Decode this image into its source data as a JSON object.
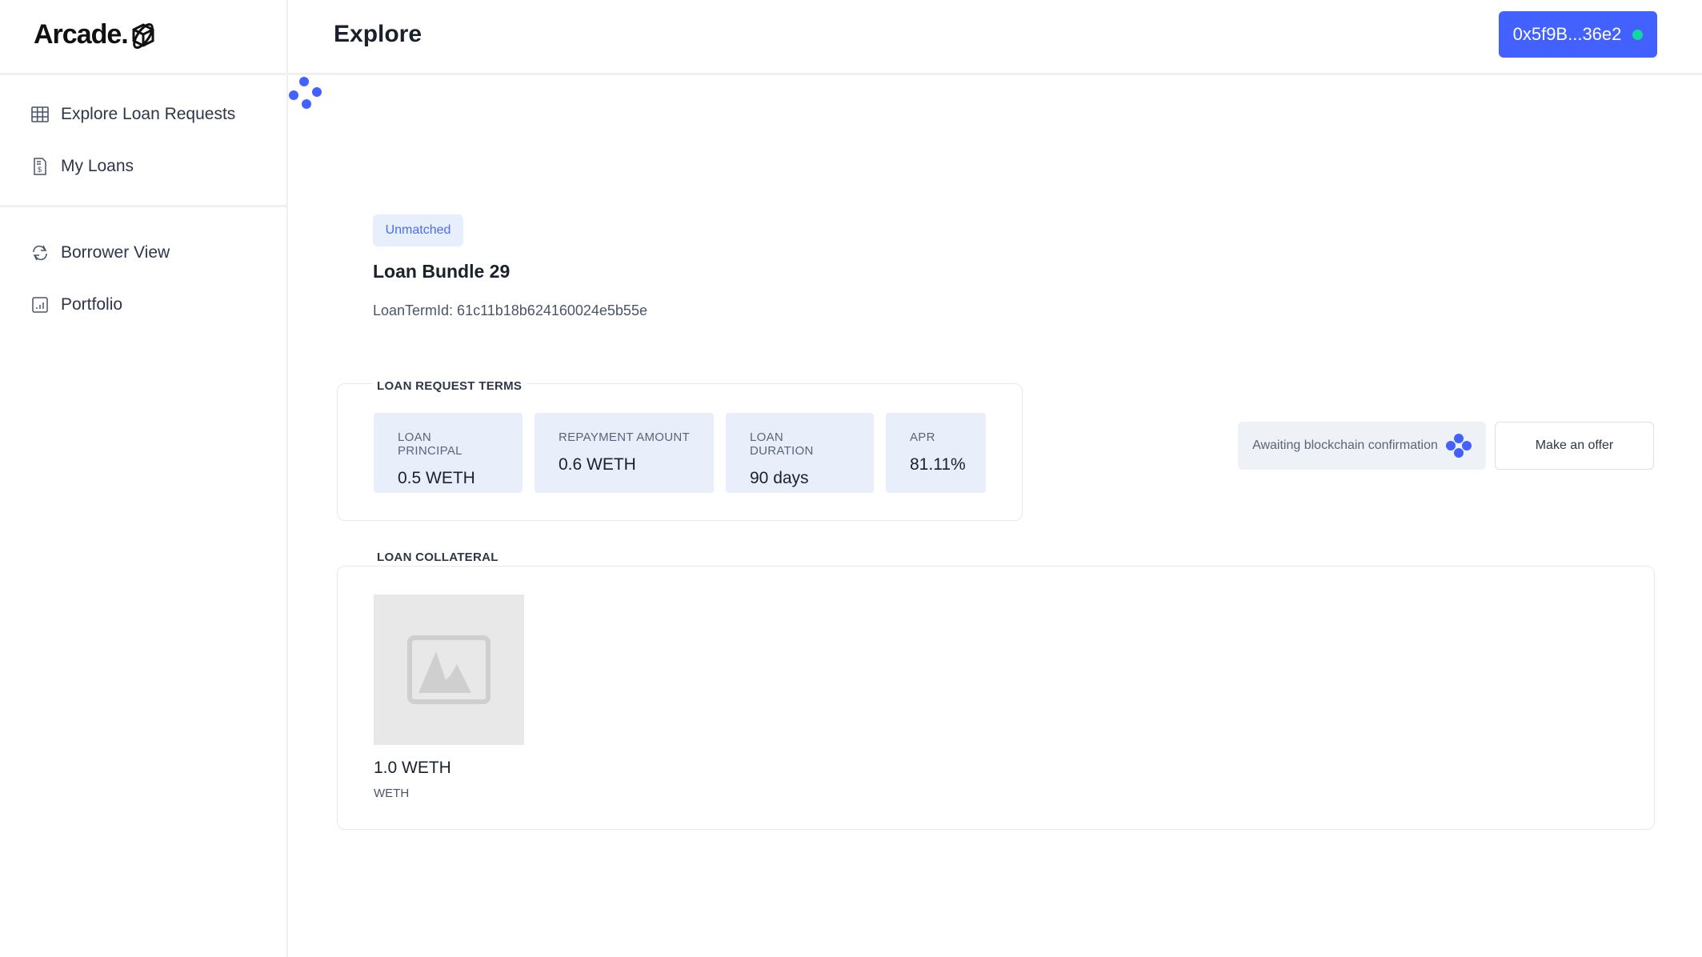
{
  "app": {
    "logo_text": "Arcade."
  },
  "sidebar": {
    "items": [
      {
        "label": "Explore Loan Requests",
        "icon": "table-icon"
      },
      {
        "label": "My Loans",
        "icon": "invoice-icon"
      },
      {
        "label": "Borrower View",
        "icon": "swap-icon"
      },
      {
        "label": "Portfolio",
        "icon": "chart-icon"
      }
    ]
  },
  "header": {
    "title": "Explore",
    "wallet": "0x5f9B...36e2",
    "wallet_status_color": "#10d9a0"
  },
  "loan": {
    "status": "Unmatched",
    "title": "Loan Bundle 29",
    "term_id": "LoanTermId: 61c11b18b624160024e5b55e",
    "terms_label": "Loan Request Terms",
    "terms": [
      {
        "label": "Loan Principal",
        "value": "0.5 WETH"
      },
      {
        "label": "Repayment Amount",
        "value": "0.6 WETH"
      },
      {
        "label": "Loan Duration",
        "value": "90 days"
      },
      {
        "label": "APR",
        "value": "81.11%"
      }
    ],
    "collateral_label": "Loan Collateral",
    "collateral": {
      "amount": "1.0 WETH",
      "symbol": "WETH"
    }
  },
  "actions": {
    "awaiting": "Awaiting blockchain confirmation",
    "offer": "Make an offer"
  },
  "colors": {
    "accent": "#4361ff",
    "tile_bg": "#e8effb"
  }
}
